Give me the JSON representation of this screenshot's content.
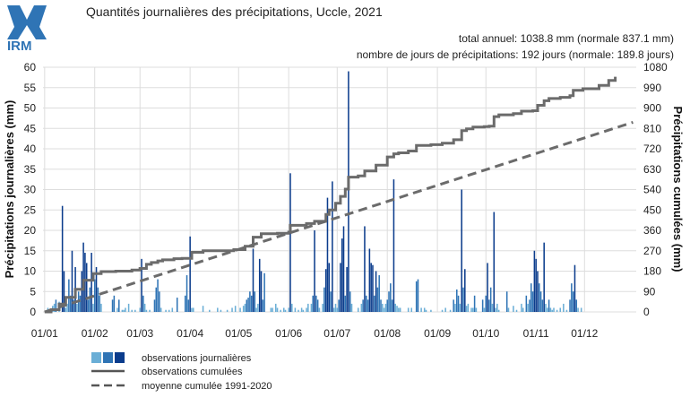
{
  "header": {
    "logo_text": "IRM",
    "title": "Quantités journalières des précipitations, Uccle, 2021",
    "annual_total": "total annuel: 1038.8 mm (normale 837.1 mm)",
    "rain_days": "nombre de jours de précipitations: 192 jours (normale: 189.8 jours)"
  },
  "colors": {
    "bar_light": "#6aaed6",
    "bar_mid": "#2f74b5",
    "bar_dark": "#0b3c8c",
    "cumul_line": "#6b6b6b",
    "normal_line": "#6b6b6b",
    "grid": "#dddddd"
  },
  "legend": {
    "daily": "observations journalières",
    "cumulative": "observations cumulées",
    "normal": "moyenne cumulée 1991-2020"
  },
  "chart_data": {
    "type": "bar",
    "title": "Quantités journalières des précipitations, Uccle, 2021",
    "ylabel_left": "Précipitations journalières (mm)",
    "ylabel_right": "Précipitations cumulées (mm)",
    "ylim_left": [
      0,
      60
    ],
    "ylim_right": [
      0,
      1080
    ],
    "yticks_left": [
      "0",
      "5",
      "10",
      "15",
      "20",
      "25",
      "30",
      "35",
      "40",
      "45",
      "50",
      "55",
      "60"
    ],
    "yticks_right": [
      "0",
      "90",
      "180",
      "270",
      "360",
      "450",
      "540",
      "630",
      "720",
      "810",
      "900",
      "990",
      "1080"
    ],
    "xticks": [
      {
        "day": 1,
        "label": "01/01"
      },
      {
        "day": 32,
        "label": "01/02"
      },
      {
        "day": 60,
        "label": "01/03"
      },
      {
        "day": 91,
        "label": "01/04"
      },
      {
        "day": 121,
        "label": "01/05"
      },
      {
        "day": 152,
        "label": "01/06"
      },
      {
        "day": 182,
        "label": "01/07"
      },
      {
        "day": 213,
        "label": "01/08"
      },
      {
        "day": 244,
        "label": "01/09"
      },
      {
        "day": 274,
        "label": "01/10"
      },
      {
        "day": 305,
        "label": "01/11"
      },
      {
        "day": 335,
        "label": "01/12"
      }
    ],
    "grid": true,
    "daily_series": {
      "name": "observations journalières",
      "points": [
        [
          3,
          1
        ],
        [
          6,
          1.5
        ],
        [
          7,
          2
        ],
        [
          8,
          3
        ],
        [
          10,
          2.5
        ],
        [
          12,
          26
        ],
        [
          13,
          10
        ],
        [
          14,
          1
        ],
        [
          15,
          2
        ],
        [
          16,
          8
        ],
        [
          17,
          4
        ],
        [
          18,
          15
        ],
        [
          19,
          3
        ],
        [
          20,
          11
        ],
        [
          21,
          2
        ],
        [
          22,
          5
        ],
        [
          23,
          4
        ],
        [
          24,
          10
        ],
        [
          25,
          17
        ],
        [
          26,
          14.5
        ],
        [
          27,
          12
        ],
        [
          28,
          3
        ],
        [
          29,
          6
        ],
        [
          30,
          14.5
        ],
        [
          31,
          2
        ],
        [
          32,
          8
        ],
        [
          33,
          11
        ],
        [
          34,
          6
        ],
        [
          35,
          4
        ],
        [
          36,
          2
        ],
        [
          43,
          3
        ],
        [
          44,
          4
        ],
        [
          46,
          1
        ],
        [
          47,
          3
        ],
        [
          49,
          0.5
        ],
        [
          50,
          0.5
        ],
        [
          51,
          1
        ],
        [
          53,
          2
        ],
        [
          55,
          0.5
        ],
        [
          57,
          0.5
        ],
        [
          60,
          1
        ],
        [
          61,
          13
        ],
        [
          62,
          4
        ],
        [
          63,
          2
        ],
        [
          64,
          0.5
        ],
        [
          66,
          0.5
        ],
        [
          69,
          3
        ],
        [
          70,
          6
        ],
        [
          71,
          8
        ],
        [
          72,
          5
        ],
        [
          73,
          1
        ],
        [
          76,
          0.5
        ],
        [
          78,
          0.5
        ],
        [
          80,
          1
        ],
        [
          83,
          3.5
        ],
        [
          88,
          4
        ],
        [
          89,
          9
        ],
        [
          90,
          3
        ],
        [
          91,
          18.5
        ],
        [
          92,
          1
        ],
        [
          93,
          1
        ],
        [
          99,
          1.5
        ],
        [
          103,
          0.5
        ],
        [
          108,
          1
        ],
        [
          110,
          0.5
        ],
        [
          114,
          0.5
        ],
        [
          117,
          1
        ],
        [
          119,
          1.5
        ],
        [
          122,
          1
        ],
        [
          124,
          1.5
        ],
        [
          125,
          2
        ],
        [
          126,
          3
        ],
        [
          127,
          3.5
        ],
        [
          128,
          5
        ],
        [
          129,
          4
        ],
        [
          130,
          15.5
        ],
        [
          131,
          5
        ],
        [
          132,
          1
        ],
        [
          133,
          2
        ],
        [
          134,
          13
        ],
        [
          135,
          10
        ],
        [
          136,
          3
        ],
        [
          137,
          9.5
        ],
        [
          141,
          1
        ],
        [
          142,
          1
        ],
        [
          144,
          2
        ],
        [
          145,
          1
        ],
        [
          147,
          0.5
        ],
        [
          149,
          1
        ],
        [
          150,
          0.5
        ],
        [
          152,
          1
        ],
        [
          153,
          34
        ],
        [
          154,
          2
        ],
        [
          156,
          1
        ],
        [
          158,
          0.5
        ],
        [
          160,
          1
        ],
        [
          161,
          0.5
        ],
        [
          163,
          1
        ],
        [
          164,
          2
        ],
        [
          166,
          2
        ],
        [
          167,
          4
        ],
        [
          168,
          20
        ],
        [
          169,
          4
        ],
        [
          170,
          3
        ],
        [
          171,
          1
        ],
        [
          173,
          2
        ],
        [
          174,
          6
        ],
        [
          175,
          10.5
        ],
        [
          176,
          28
        ],
        [
          177,
          12
        ],
        [
          178,
          5
        ],
        [
          179,
          32
        ],
        [
          180,
          1
        ],
        [
          181,
          2
        ],
        [
          182,
          1
        ],
        [
          183,
          3
        ],
        [
          184,
          12
        ],
        [
          185,
          18
        ],
        [
          186,
          21
        ],
        [
          187,
          4
        ],
        [
          188,
          11
        ],
        [
          189,
          59
        ],
        [
          190,
          5
        ],
        [
          191,
          2
        ],
        [
          195,
          1
        ],
        [
          197,
          2
        ],
        [
          198,
          3
        ],
        [
          199,
          21
        ],
        [
          200,
          4
        ],
        [
          201,
          3
        ],
        [
          202,
          15.5
        ],
        [
          203,
          12
        ],
        [
          204,
          11.5
        ],
        [
          205,
          4
        ],
        [
          206,
          10
        ],
        [
          207,
          6
        ],
        [
          208,
          9
        ],
        [
          209,
          3
        ],
        [
          210,
          2
        ],
        [
          211,
          1
        ],
        [
          212,
          2
        ],
        [
          213,
          3
        ],
        [
          214,
          5
        ],
        [
          215,
          7
        ],
        [
          216,
          3
        ],
        [
          217,
          32.5
        ],
        [
          218,
          2
        ],
        [
          219,
          1.5
        ],
        [
          220,
          1
        ],
        [
          221,
          1
        ],
        [
          226,
          1
        ],
        [
          228,
          1
        ],
        [
          231,
          7.5
        ],
        [
          232,
          8
        ],
        [
          234,
          1
        ],
        [
          236,
          1
        ],
        [
          237,
          0.5
        ],
        [
          240,
          0.5
        ],
        [
          247,
          0.5
        ],
        [
          249,
          1
        ],
        [
          252,
          0.5
        ],
        [
          254,
          3
        ],
        [
          255,
          2
        ],
        [
          256,
          5.5
        ],
        [
          257,
          4
        ],
        [
          258,
          2
        ],
        [
          259,
          30
        ],
        [
          260,
          6
        ],
        [
          261,
          10.5
        ],
        [
          262,
          1.5
        ],
        [
          263,
          2
        ],
        [
          265,
          1
        ],
        [
          266,
          1
        ],
        [
          267,
          4
        ],
        [
          268,
          1
        ],
        [
          272,
          3
        ],
        [
          273,
          1
        ],
        [
          274,
          4
        ],
        [
          275,
          12
        ],
        [
          276,
          3
        ],
        [
          277,
          6
        ],
        [
          278,
          2
        ],
        [
          279,
          24.5
        ],
        [
          280,
          1
        ],
        [
          281,
          2
        ],
        [
          282,
          0.5
        ],
        [
          287,
          5
        ],
        [
          288,
          1
        ],
        [
          291,
          1.5
        ],
        [
          293,
          0.5
        ],
        [
          296,
          2
        ],
        [
          297,
          1
        ],
        [
          299,
          4
        ],
        [
          300,
          2
        ],
        [
          301,
          3
        ],
        [
          302,
          7
        ],
        [
          303,
          5
        ],
        [
          304,
          15
        ],
        [
          305,
          13
        ],
        [
          306,
          10
        ],
        [
          307,
          7
        ],
        [
          308,
          5
        ],
        [
          309,
          3
        ],
        [
          310,
          17
        ],
        [
          311,
          2
        ],
        [
          312,
          1
        ],
        [
          313,
          3
        ],
        [
          314,
          1
        ],
        [
          315,
          0.5
        ],
        [
          316,
          1
        ],
        [
          318,
          0.5
        ],
        [
          320,
          1
        ],
        [
          322,
          2
        ],
        [
          324,
          0.5
        ],
        [
          326,
          3
        ],
        [
          327,
          7
        ],
        [
          328,
          5
        ],
        [
          329,
          11.5
        ],
        [
          330,
          3
        ],
        [
          331,
          1
        ],
        [
          333,
          1
        ]
      ]
    },
    "cumulative_series": {
      "name": "observations cumulées",
      "points": [
        [
          1,
          0
        ],
        [
          5,
          10
        ],
        [
          10,
          35
        ],
        [
          14,
          64
        ],
        [
          20,
          100
        ],
        [
          25,
          140
        ],
        [
          31,
          169
        ],
        [
          36,
          178
        ],
        [
          45,
          180
        ],
        [
          55,
          185
        ],
        [
          60,
          192
        ],
        [
          64,
          210
        ],
        [
          67,
          218
        ],
        [
          71,
          225
        ],
        [
          74,
          230
        ],
        [
          77,
          230
        ],
        [
          81,
          235
        ],
        [
          86,
          236
        ],
        [
          92,
          263
        ],
        [
          99,
          270
        ],
        [
          106,
          270
        ],
        [
          113,
          270
        ],
        [
          118,
          275
        ],
        [
          125,
          290
        ],
        [
          130,
          330
        ],
        [
          135,
          345
        ],
        [
          145,
          347
        ],
        [
          152,
          352
        ],
        [
          153,
          382
        ],
        [
          163,
          390
        ],
        [
          168,
          400
        ],
        [
          175,
          430
        ],
        [
          177,
          450
        ],
        [
          181,
          480
        ],
        [
          184,
          510
        ],
        [
          187,
          542
        ],
        [
          189,
          595
        ],
        [
          195,
          600
        ],
        [
          199,
          622
        ],
        [
          206,
          648
        ],
        [
          213,
          684
        ],
        [
          217,
          698
        ],
        [
          220,
          702
        ],
        [
          226,
          710
        ],
        [
          231,
          735
        ],
        [
          240,
          738
        ],
        [
          247,
          745
        ],
        [
          254,
          760
        ],
        [
          259,
          800
        ],
        [
          262,
          808
        ],
        [
          266,
          816
        ],
        [
          273,
          818
        ],
        [
          276,
          820
        ],
        [
          279,
          862
        ],
        [
          282,
          870
        ],
        [
          291,
          875
        ],
        [
          296,
          886
        ],
        [
          303,
          888
        ],
        [
          306,
          912
        ],
        [
          310,
          932
        ],
        [
          313,
          942
        ],
        [
          320,
          947
        ],
        [
          326,
          954
        ],
        [
          328,
          978
        ],
        [
          334,
          985
        ],
        [
          340,
          985
        ],
        [
          344,
          1000
        ],
        [
          350,
          1022
        ],
        [
          354,
          1038
        ]
      ]
    },
    "normal_series": {
      "name": "moyenne cumulée 1991-2020",
      "points": [
        [
          1,
          0
        ],
        [
          365,
          837.1
        ]
      ]
    }
  }
}
